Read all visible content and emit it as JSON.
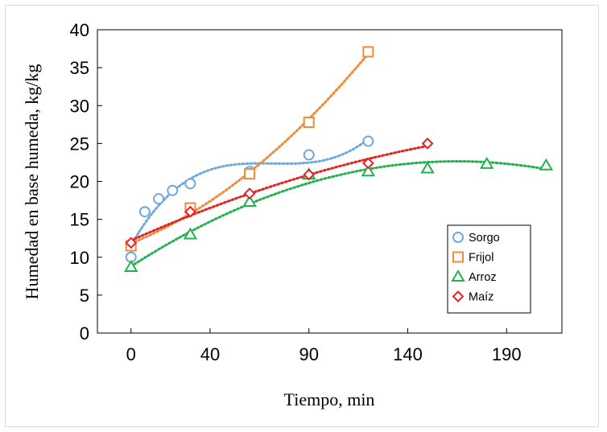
{
  "chart_data": {
    "type": "scatter",
    "xlabel": "Tiempo, min",
    "ylabel": "Humedad en base humeda, kg/kg",
    "xlim": [
      -17,
      218
    ],
    "ylim": [
      0,
      40
    ],
    "xticks": [
      0,
      40,
      90,
      140,
      190
    ],
    "yticks": [
      0,
      5,
      10,
      15,
      20,
      25,
      30,
      35,
      40
    ],
    "grid": false,
    "legend_position": "bottom-right",
    "series": [
      {
        "name": "Sorgo",
        "marker": "circle",
        "color": "#6fa8dc",
        "x": [
          0,
          7,
          14,
          21,
          30,
          60,
          90,
          120
        ],
        "y": [
          10.0,
          16.0,
          17.7,
          18.8,
          19.7,
          21.3,
          23.5,
          25.3
        ],
        "trend": "polynomial"
      },
      {
        "name": "Frijol",
        "marker": "square",
        "color": "#f08b3a",
        "x": [
          0,
          30,
          60,
          90,
          120
        ],
        "y": [
          11.5,
          16.5,
          21.0,
          27.8,
          37.1
        ],
        "trend": "polynomial"
      },
      {
        "name": "Arroz",
        "marker": "triangle",
        "color": "#22b14c",
        "x": [
          0,
          30,
          60,
          90,
          120,
          150,
          180,
          210
        ],
        "y": [
          8.7,
          13.0,
          17.3,
          20.9,
          21.3,
          21.7,
          22.3,
          22.1
        ],
        "trend": "polynomial"
      },
      {
        "name": "Maíz",
        "marker": "diamond",
        "color": "#e3231f",
        "x": [
          0,
          30,
          60,
          90,
          120,
          150
        ],
        "y": [
          11.9,
          16.0,
          18.4,
          20.9,
          22.4,
          25.0
        ],
        "trend": "polynomial"
      }
    ]
  }
}
